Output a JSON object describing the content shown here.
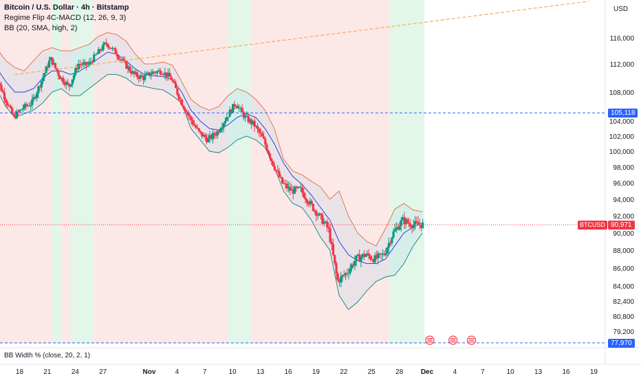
{
  "legend": {
    "title": "Bitcoin / U.S. Dollar · 4h · Bitstamp",
    "indicator1": "Regime Flip 4C-MACD (12, 26, 9, 3)",
    "indicator2": "BB (20, SMA, high, 2)"
  },
  "currency": "USD",
  "subpane_label": "BB Width % (close, 20, 2, 1)",
  "symbol_label": "BTCUSD",
  "price_tags": {
    "resistance": "105,118",
    "last": "90,971",
    "support": "77,970"
  },
  "colors": {
    "up": "#089981",
    "down": "#f23645",
    "bb_upper": "#e8734a",
    "bb_basis": "#2e3fd8",
    "bb_lower": "#1f8a80",
    "regime_red": "#fde8e8",
    "regime_green": "#e2f7ea",
    "dashed_blue": "#2962ff",
    "trend_orange": "#f7a94b"
  },
  "chart_data": {
    "type": "candlestick",
    "title": "Bitcoin / U.S. Dollar · 4h · Bitstamp",
    "y_ticks": [
      116000,
      112000,
      108000,
      104000,
      102000,
      100000,
      98000,
      96000,
      94000,
      92000,
      90000,
      88000,
      86000,
      84000,
      82400,
      80800,
      79200
    ],
    "y_tick_labels": [
      "116,000",
      "112,000",
      "108,000",
      "104,000",
      "102,000",
      "100,000",
      "98,000",
      "96,000",
      "94,000",
      "92,000",
      "90,000",
      "88,000",
      "86,000",
      "84,000",
      "82,400",
      "80,800",
      "79,200"
    ],
    "x_tick_labels": [
      "18",
      "21",
      "24",
      "27",
      "Nov",
      "4",
      "7",
      "10",
      "13",
      "16",
      "19",
      "22",
      "25",
      "28",
      "Dec",
      "4",
      "7",
      "10",
      "13",
      "16",
      "19"
    ],
    "x_tick_days": [
      -14,
      -11,
      -8,
      -5,
      0,
      3,
      6,
      9,
      12,
      15,
      18,
      21,
      24,
      27,
      30,
      33,
      36,
      39,
      42,
      45,
      48
    ],
    "last_price": 90971,
    "horizontal_levels": [
      105118,
      77970
    ],
    "price_path": [
      [
        -16.5,
        110500
      ],
      [
        -15.5,
        107500
      ],
      [
        -14.5,
        104500
      ],
      [
        -13.5,
        105800
      ],
      [
        -12.5,
        106500
      ],
      [
        -11.5,
        109500
      ],
      [
        -10.5,
        112800
      ],
      [
        -9.5,
        110200
      ],
      [
        -8.5,
        108800
      ],
      [
        -7.5,
        112000
      ],
      [
        -6.5,
        111800
      ],
      [
        -5.5,
        113500
      ],
      [
        -4.5,
        115200
      ],
      [
        -3.5,
        113800
      ],
      [
        -2.5,
        112000
      ],
      [
        -1.5,
        110500
      ],
      [
        -0.5,
        110000
      ],
      [
        0.5,
        110800
      ],
      [
        1.5,
        111000
      ],
      [
        2.5,
        110000
      ],
      [
        3.5,
        107000
      ],
      [
        4.5,
        104500
      ],
      [
        5.5,
        102500
      ],
      [
        6.5,
        101500
      ],
      [
        7.5,
        102500
      ],
      [
        8.5,
        104500
      ],
      [
        9.5,
        106500
      ],
      [
        10.5,
        104500
      ],
      [
        11.5,
        103500
      ],
      [
        12.5,
        101500
      ],
      [
        13.5,
        98500
      ],
      [
        14.5,
        96000
      ],
      [
        15.5,
        95000
      ],
      [
        16.5,
        95200
      ],
      [
        17.5,
        93500
      ],
      [
        18.5,
        92000
      ],
      [
        19.5,
        90500
      ],
      [
        20.5,
        84500
      ],
      [
        21.5,
        85500
      ],
      [
        22.5,
        87000
      ],
      [
        23.5,
        87500
      ],
      [
        24.5,
        87000
      ],
      [
        25.5,
        87500
      ],
      [
        26.5,
        90000
      ],
      [
        27.5,
        91500
      ],
      [
        28.5,
        91000
      ],
      [
        29.5,
        90971
      ]
    ],
    "bollinger_bands": {
      "upper": [
        [
          -16.5,
          114500
        ],
        [
          -15.5,
          112500
        ],
        [
          -14.5,
          111500
        ],
        [
          -13.5,
          111000
        ],
        [
          -12.5,
          112500
        ],
        [
          -11.5,
          114000
        ],
        [
          -10.5,
          114500
        ],
        [
          -9.5,
          114000
        ],
        [
          -8.5,
          114000
        ],
        [
          -7.5,
          114500
        ],
        [
          -6.5,
          115000
        ],
        [
          -5.5,
          116200
        ],
        [
          -4.5,
          116800
        ],
        [
          -3.5,
          116500
        ],
        [
          -2.5,
          115500
        ],
        [
          -1.5,
          113500
        ],
        [
          -0.5,
          112000
        ],
        [
          0.5,
          112000
        ],
        [
          1.5,
          112300
        ],
        [
          2.5,
          111800
        ],
        [
          3.5,
          109500
        ],
        [
          4.5,
          107000
        ],
        [
          5.5,
          106000
        ],
        [
          6.5,
          105500
        ],
        [
          7.5,
          106000
        ],
        [
          8.5,
          107500
        ],
        [
          9.5,
          108500
        ],
        [
          10.5,
          108000
        ],
        [
          11.5,
          107000
        ],
        [
          12.5,
          105500
        ],
        [
          13.5,
          103000
        ],
        [
          14.5,
          99000
        ],
        [
          15.5,
          97500
        ],
        [
          16.5,
          97000
        ],
        [
          17.5,
          96200
        ],
        [
          18.5,
          95500
        ],
        [
          19.5,
          94000
        ],
        [
          20.5,
          95000
        ],
        [
          21.5,
          92000
        ],
        [
          22.5,
          90000
        ],
        [
          23.5,
          89000
        ],
        [
          24.5,
          88500
        ],
        [
          25.5,
          90500
        ],
        [
          26.5,
          92800
        ],
        [
          27.5,
          93500
        ],
        [
          28.5,
          92700
        ],
        [
          29.5,
          92500
        ]
      ],
      "basis": [
        [
          -16.5,
          111500
        ],
        [
          -15.5,
          109500
        ],
        [
          -14.5,
          108000
        ],
        [
          -13.5,
          108000
        ],
        [
          -12.5,
          108500
        ],
        [
          -11.5,
          110000
        ],
        [
          -10.5,
          111000
        ],
        [
          -9.5,
          111000
        ],
        [
          -8.5,
          110500
        ],
        [
          -7.5,
          111000
        ],
        [
          -6.5,
          111800
        ],
        [
          -5.5,
          112800
        ],
        [
          -4.5,
          113800
        ],
        [
          -3.5,
          113500
        ],
        [
          -2.5,
          112500
        ],
        [
          -1.5,
          111300
        ],
        [
          -0.5,
          110500
        ],
        [
          0.5,
          110300
        ],
        [
          1.5,
          110200
        ],
        [
          2.5,
          109800
        ],
        [
          3.5,
          108000
        ],
        [
          4.5,
          105500
        ],
        [
          5.5,
          104000
        ],
        [
          6.5,
          103000
        ],
        [
          7.5,
          102800
        ],
        [
          8.5,
          103500
        ],
        [
          9.5,
          104500
        ],
        [
          10.5,
          105000
        ],
        [
          11.5,
          104500
        ],
        [
          12.5,
          103000
        ],
        [
          13.5,
          101000
        ],
        [
          14.5,
          98500
        ],
        [
          15.5,
          96800
        ],
        [
          16.5,
          95800
        ],
        [
          17.5,
          94500
        ],
        [
          18.5,
          93000
        ],
        [
          19.5,
          91500
        ],
        [
          20.5,
          89000
        ],
        [
          21.5,
          87500
        ],
        [
          22.5,
          86800
        ],
        [
          23.5,
          86500
        ],
        [
          24.5,
          86500
        ],
        [
          25.5,
          87000
        ],
        [
          26.5,
          88500
        ],
        [
          27.5,
          90000
        ],
        [
          28.5,
          90700
        ],
        [
          29.5,
          91200
        ]
      ],
      "lower": [
        [
          -16.5,
          108500
        ],
        [
          -15.5,
          106000
        ],
        [
          -14.5,
          104500
        ],
        [
          -13.5,
          105000
        ],
        [
          -12.5,
          105500
        ],
        [
          -11.5,
          106500
        ],
        [
          -10.5,
          108000
        ],
        [
          -9.5,
          108500
        ],
        [
          -8.5,
          107500
        ],
        [
          -7.5,
          107500
        ],
        [
          -6.5,
          108500
        ],
        [
          -5.5,
          109500
        ],
        [
          -4.5,
          110500
        ],
        [
          -3.5,
          110500
        ],
        [
          -2.5,
          110000
        ],
        [
          -1.5,
          109000
        ],
        [
          -0.5,
          108800
        ],
        [
          0.5,
          108500
        ],
        [
          1.5,
          108300
        ],
        [
          2.5,
          107500
        ],
        [
          3.5,
          106500
        ],
        [
          4.5,
          103000
        ],
        [
          5.5,
          101500
        ],
        [
          6.5,
          100000
        ],
        [
          7.5,
          99800
        ],
        [
          8.5,
          100500
        ],
        [
          9.5,
          101500
        ],
        [
          10.5,
          102000
        ],
        [
          11.5,
          101500
        ],
        [
          12.5,
          100500
        ],
        [
          13.5,
          98000
        ],
        [
          14.5,
          95000
        ],
        [
          15.5,
          93500
        ],
        [
          16.5,
          93000
        ],
        [
          17.5,
          91500
        ],
        [
          18.5,
          89500
        ],
        [
          19.5,
          88000
        ],
        [
          20.5,
          83000
        ],
        [
          21.5,
          81500
        ],
        [
          22.5,
          82300
        ],
        [
          23.5,
          83500
        ],
        [
          24.5,
          84500
        ],
        [
          25.5,
          85000
        ],
        [
          26.5,
          85200
        ],
        [
          27.5,
          86500
        ],
        [
          28.5,
          88500
        ],
        [
          29.5,
          90000
        ]
      ]
    },
    "regimes": [
      {
        "from": -17,
        "to": -10.5,
        "state": "bearish"
      },
      {
        "from": -10.5,
        "to": -9.5,
        "state": "bullish"
      },
      {
        "from": -9.5,
        "to": -8.5,
        "state": "bearish"
      },
      {
        "from": -8.5,
        "to": -6.0,
        "state": "bullish"
      },
      {
        "from": -6.0,
        "to": 8.5,
        "state": "bearish"
      },
      {
        "from": 8.5,
        "to": 11.0,
        "state": "bullish"
      },
      {
        "from": 11.0,
        "to": 26.0,
        "state": "bearish"
      },
      {
        "from": 26.0,
        "to": 30.0,
        "state": "bullish"
      }
    ],
    "trendline": {
      "from": [
        -14.5,
        110500
      ],
      "to": [
        47.5,
        121600
      ]
    },
    "event_markers_days": [
      30,
      32.5,
      34.5
    ]
  }
}
